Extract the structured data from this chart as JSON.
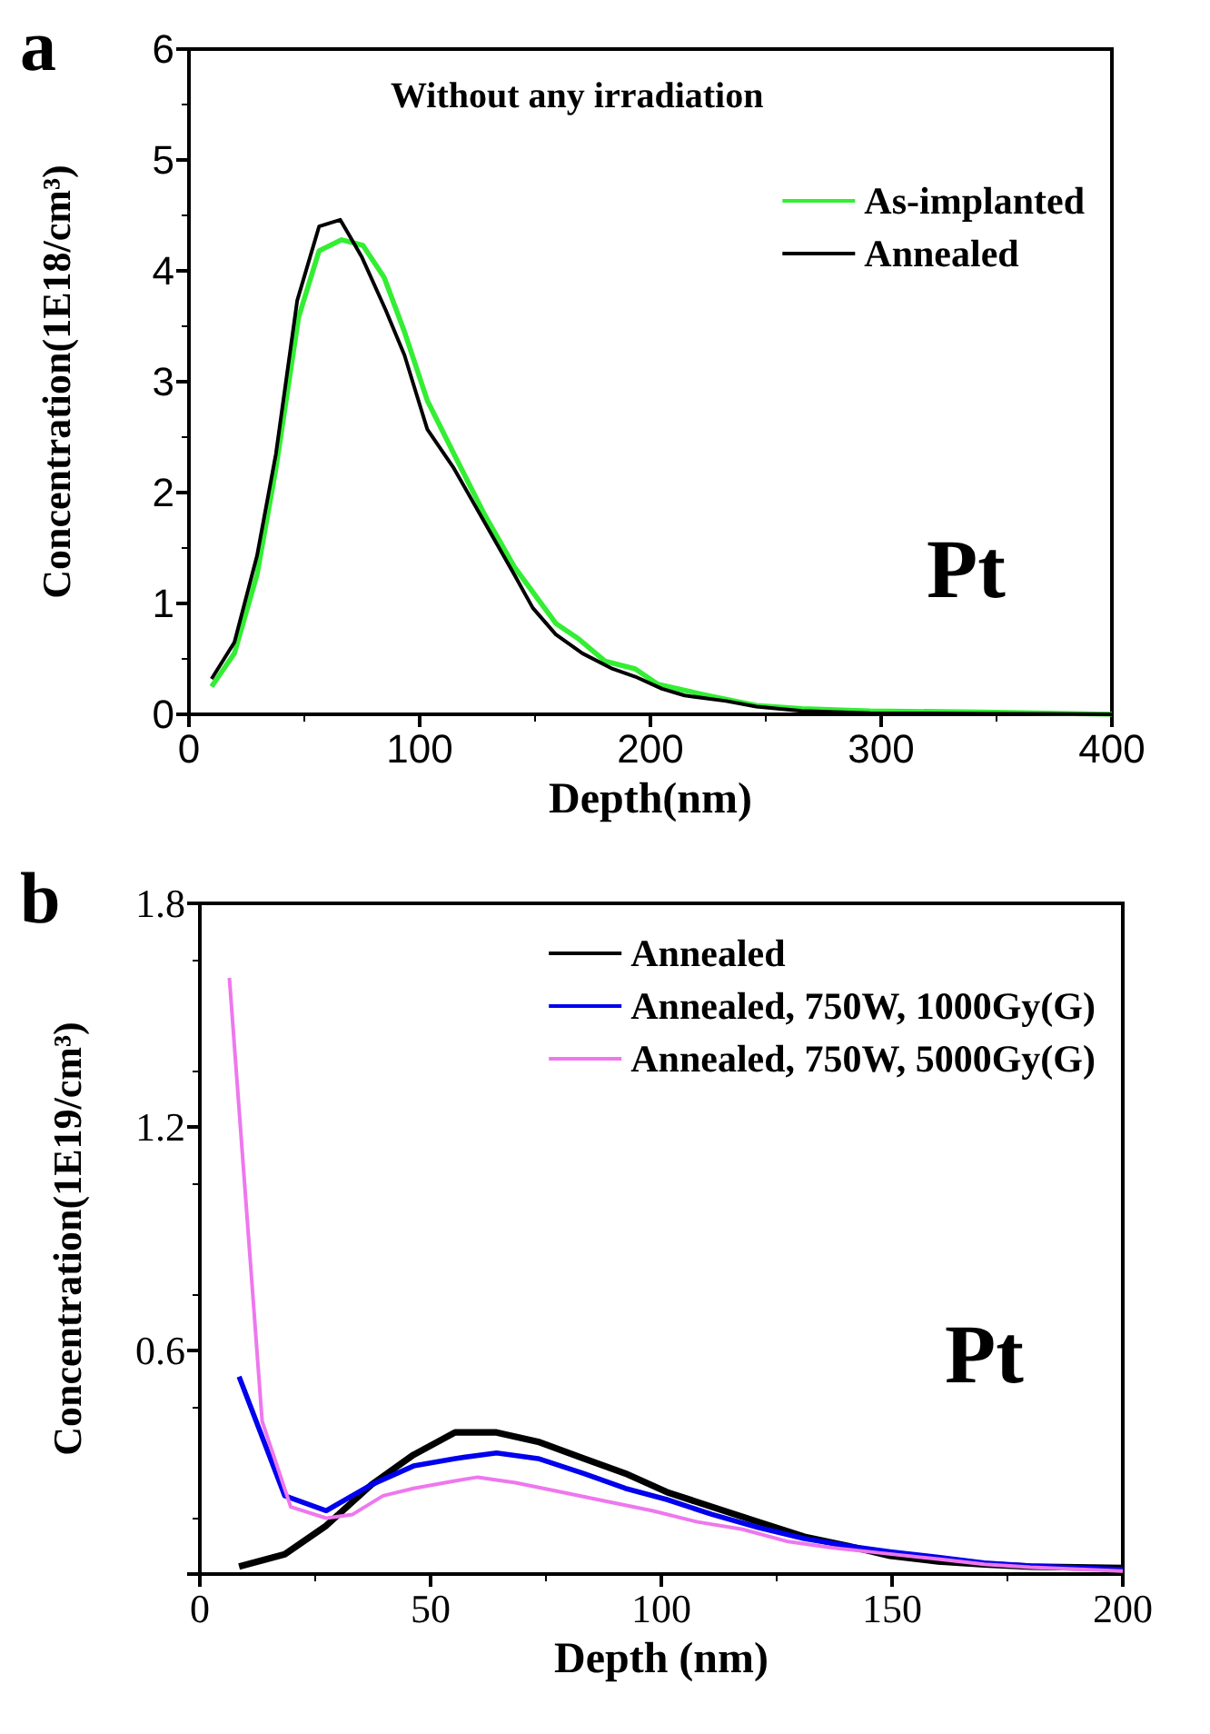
{
  "chart_data": [
    {
      "type": "line",
      "title": "a",
      "xlabel": "Depth(nm)",
      "ylabel": "Concentration(1E18/cm³)",
      "annotations": [
        "Without any irradiation",
        "Pt"
      ],
      "xlim": [
        0,
        400
      ],
      "xticks": [
        0,
        100,
        200,
        300,
        400
      ],
      "ylim": [
        0,
        6
      ],
      "yticks": [
        0,
        1,
        2,
        3,
        4,
        5,
        6
      ],
      "legend": "top right",
      "grid": false,
      "series": [
        {
          "name": "As-implanted",
          "color": "#33ee33",
          "x": [
            9.8,
            19.7,
            29.5,
            37.7,
            47.5,
            56.4,
            66.2,
            75.4,
            84.6,
            93.4,
            103.3,
            114.8,
            127.9,
            141,
            159,
            168.9,
            180.3,
            193.4,
            203.3,
            224.6,
            245.9,
            265.6,
            295,
            344,
            400
          ],
          "values": [
            0.25,
            0.55,
            1.26,
            2.22,
            3.58,
            4.18,
            4.28,
            4.23,
            3.94,
            3.45,
            2.83,
            2.35,
            1.81,
            1.33,
            0.82,
            0.68,
            0.48,
            0.41,
            0.27,
            0.17,
            0.08,
            0.05,
            0.03,
            0.02,
            0
          ]
        },
        {
          "name": "Annealed",
          "color": "#000000",
          "x": [
            9.8,
            19.7,
            29.5,
            37.7,
            46.9,
            56.4,
            65.6,
            74.8,
            85.2,
            93.4,
            103.3,
            114.8,
            127.9,
            141,
            149,
            159,
            170.5,
            183.6,
            193.4,
            205,
            214.8,
            232.8,
            245.9,
            265.6,
            295,
            400
          ],
          "values": [
            0.32,
            0.65,
            1.43,
            2.35,
            3.73,
            4.4,
            4.46,
            4.13,
            3.65,
            3.24,
            2.57,
            2.22,
            1.74,
            1.26,
            0.96,
            0.72,
            0.55,
            0.41,
            0.34,
            0.23,
            0.17,
            0.12,
            0.07,
            0.03,
            0.01,
            0
          ]
        }
      ]
    },
    {
      "type": "line",
      "title": "b",
      "xlabel": "Depth (nm)",
      "ylabel": "Concentration(1E19/cm³)",
      "annotations": [
        "Pt"
      ],
      "xlim": [
        0,
        200
      ],
      "xticks": [
        0,
        50,
        100,
        150,
        200
      ],
      "ylim": [
        0,
        1.8
      ],
      "yticks": [
        {
          "value": 0,
          "label": null
        },
        0.6,
        1.2,
        1.8
      ],
      "legend": "top right",
      "grid": false,
      "series": [
        {
          "name": "Annealed",
          "color": "#000000",
          "x": [
            8.5,
            18.4,
            27.4,
            37.2,
            46.3,
            55.3,
            64.3,
            73.3,
            83.2,
            92.2,
            101.2,
            111,
            121,
            131,
            140.6,
            149.6,
            160,
            170,
            180,
            200
          ],
          "values": [
            0.02,
            0.053,
            0.13,
            0.24,
            0.32,
            0.38,
            0.38,
            0.355,
            0.31,
            0.27,
            0.22,
            0.18,
            0.14,
            0.1,
            0.075,
            0.049,
            0.034,
            0.026,
            0.02,
            0.016
          ]
        },
        {
          "name": "Annealed, 750W, 1000Gy(G)",
          "color": "#0000ee",
          "x": [
            8.5,
            18.4,
            27.4,
            37.2,
            46.3,
            55.3,
            64.3,
            73.3,
            83.2,
            92.2,
            101.2,
            111,
            121,
            131,
            140.6,
            149.6,
            160,
            170,
            180,
            200
          ],
          "values": [
            0.53,
            0.21,
            0.17,
            0.24,
            0.29,
            0.31,
            0.325,
            0.31,
            0.27,
            0.23,
            0.2,
            0.16,
            0.125,
            0.095,
            0.075,
            0.06,
            0.045,
            0.03,
            0.022,
            0.012
          ]
        },
        {
          "name": "Annealed, 750W, 5000Gy(G)",
          "color": "#ee77ee",
          "x": [
            6.4,
            13.5,
            19.7,
            27.4,
            33.1,
            39.7,
            46.3,
            55.3,
            60.2,
            68.4,
            78.3,
            88.1,
            98,
            107.8,
            117.6,
            127.5,
            137.3,
            147.2,
            160,
            170,
            180,
            200
          ],
          "values": [
            1.6,
            0.41,
            0.18,
            0.15,
            0.16,
            0.21,
            0.23,
            0.25,
            0.26,
            0.245,
            0.22,
            0.195,
            0.17,
            0.14,
            0.12,
            0.087,
            0.07,
            0.057,
            0.04,
            0.026,
            0.018,
            0.008
          ]
        }
      ]
    }
  ]
}
